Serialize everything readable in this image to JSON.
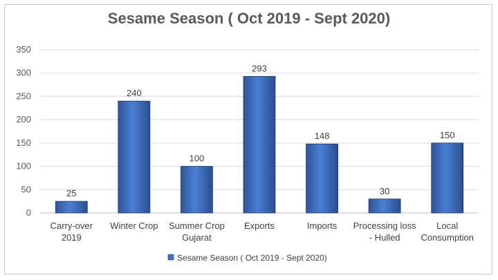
{
  "chart_data": {
    "type": "bar",
    "title": "Sesame Season ( Oct 2019 - Sept 2020)",
    "categories": [
      [
        "Carry-over",
        "2019"
      ],
      [
        "Winter Crop"
      ],
      [
        "Summer Crop",
        "Gujarat"
      ],
      [
        "Exports"
      ],
      [
        "Imports"
      ],
      [
        "Processing loss",
        "- Hulled"
      ],
      [
        "Local",
        "Consumption"
      ]
    ],
    "series": [
      {
        "name": "Sesame Season ( Oct 2019 - Sept 2020)",
        "values": [
          25,
          240,
          100,
          293,
          148,
          30,
          150
        ],
        "color": "#4472c4"
      }
    ],
    "data_labels": [
      "25",
      "240",
      "100",
      "293",
      "148",
      "30",
      "150"
    ],
    "y_ticks": [
      "0",
      "50",
      "100",
      "150",
      "200",
      "250",
      "300",
      "350"
    ],
    "ylim": [
      0,
      350
    ],
    "xlabel": "",
    "ylabel": "",
    "grid": true,
    "legend_position": "bottom"
  }
}
